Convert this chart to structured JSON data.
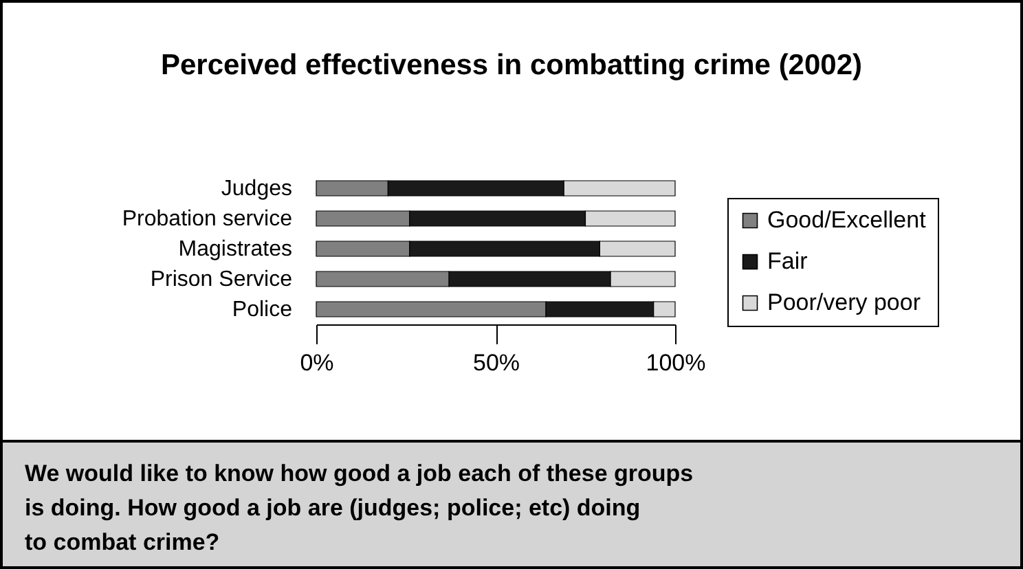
{
  "chart_data": {
    "type": "bar",
    "orientation": "horizontal",
    "stacked": true,
    "title": "Perceived effectiveness in combatting crime (2002)",
    "categories": [
      "Judges",
      "Probation service",
      "Magistrates",
      "Prison Service",
      "Police"
    ],
    "series": [
      {
        "name": "Good/Excellent",
        "color": "#808080",
        "values": [
          20,
          26,
          26,
          37,
          64
        ]
      },
      {
        "name": "Fair",
        "color": "#1a1a1a",
        "values": [
          49,
          49,
          53,
          45,
          30
        ]
      },
      {
        "name": "Poor/very poor",
        "color": "#d9d9d9",
        "values": [
          31,
          25,
          21,
          18,
          6
        ]
      }
    ],
    "xlim": [
      0,
      100
    ],
    "xticks": [
      {
        "value": 0,
        "label": "0%"
      },
      {
        "value": 50,
        "label": "50%"
      },
      {
        "value": 100,
        "label": "100%"
      }
    ],
    "grid": false,
    "legend": "right",
    "annotations": [
      "We would like to know how good a job each of these groups\nis doing. How good a job are (judges; police; etc) doing\nto combat crime?"
    ]
  }
}
